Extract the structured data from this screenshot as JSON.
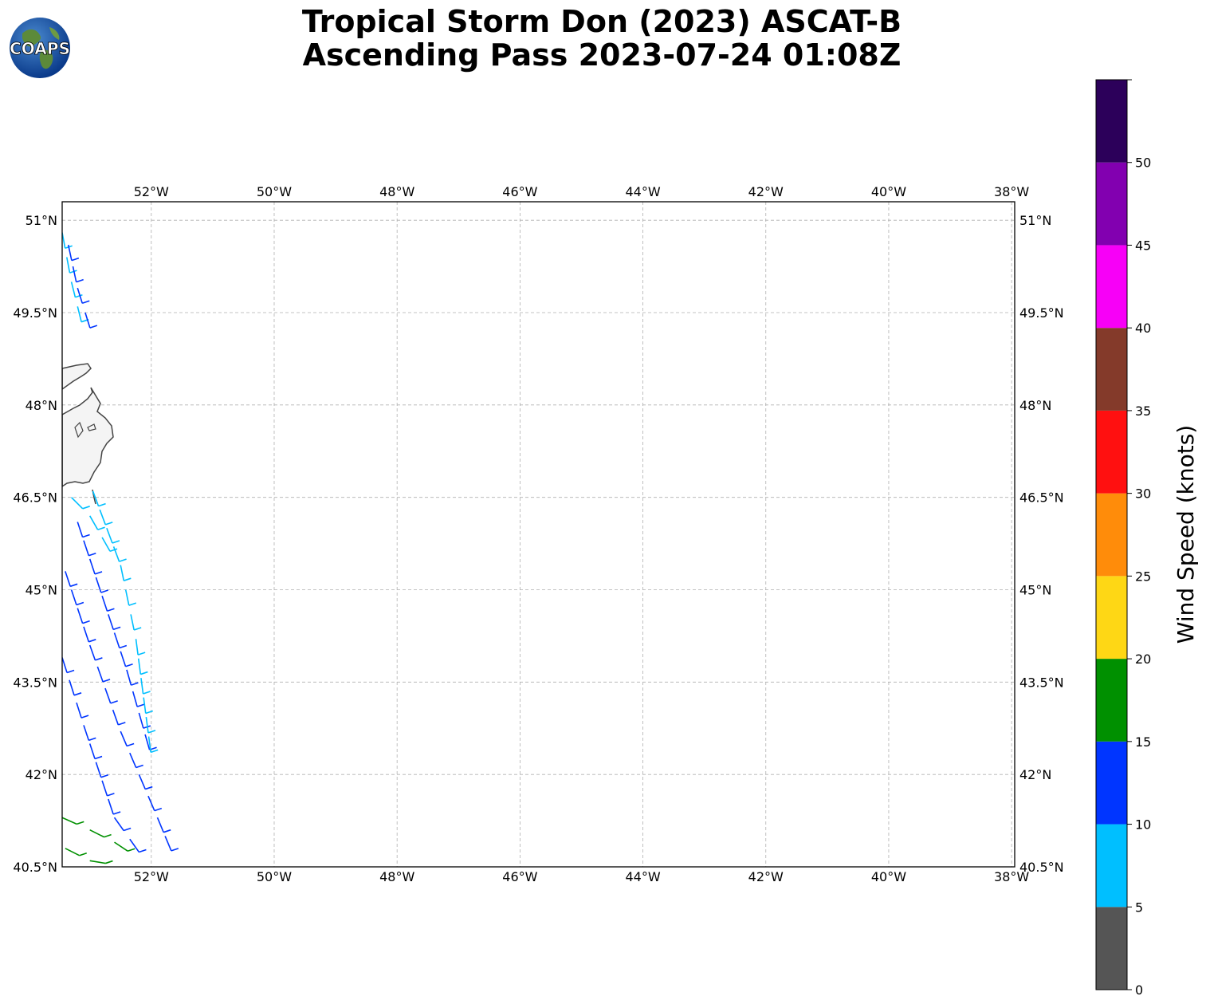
{
  "title": {
    "line1": "Tropical Storm Don (2023) ASCAT-B",
    "line2": "Ascending Pass 2023-07-24 01:08Z"
  },
  "logo": {
    "text": "COAPS",
    "icon": "earth-globe-icon"
  },
  "map": {
    "lon_range": [
      -53.45,
      -37.95
    ],
    "lat_range": [
      40.5,
      51.3
    ],
    "lon_ticks": [
      {
        "value": -52,
        "label": "52°W"
      },
      {
        "value": -50,
        "label": "50°W"
      },
      {
        "value": -48,
        "label": "48°W"
      },
      {
        "value": -46,
        "label": "46°W"
      },
      {
        "value": -44,
        "label": "44°W"
      },
      {
        "value": -42,
        "label": "42°W"
      },
      {
        "value": -40,
        "label": "40°W"
      },
      {
        "value": -38,
        "label": "38°W"
      }
    ],
    "lat_ticks": [
      {
        "value": 51,
        "label": "51°N"
      },
      {
        "value": 49.5,
        "label": "49.5°N"
      },
      {
        "value": 48,
        "label": "48°N"
      },
      {
        "value": 46.5,
        "label": "46.5°N"
      },
      {
        "value": 45,
        "label": "45°N"
      },
      {
        "value": 43.5,
        "label": "43.5°N"
      },
      {
        "value": 42,
        "label": "42°N"
      },
      {
        "value": 40.5,
        "label": "40.5°N"
      }
    ],
    "grid": true,
    "coastline_color": "#444444",
    "land_color": "#f4f4f4"
  },
  "colorbar": {
    "label": "Wind Speed (knots)",
    "ticks": [
      "0",
      "5",
      "10",
      "15",
      "20",
      "25",
      "30",
      "35",
      "40",
      "45",
      "50"
    ],
    "bins": [
      {
        "min": 0,
        "max": 5,
        "color": "#555555"
      },
      {
        "min": 5,
        "max": 10,
        "color": "#00bfff"
      },
      {
        "min": 10,
        "max": 15,
        "color": "#0035ff"
      },
      {
        "min": 15,
        "max": 20,
        "color": "#009000"
      },
      {
        "min": 20,
        "max": 25,
        "color": "#fed715"
      },
      {
        "min": 25,
        "max": 30,
        "color": "#ff8c0a"
      },
      {
        "min": 30,
        "max": 35,
        "color": "#ff1010"
      },
      {
        "min": 35,
        "max": 40,
        "color": "#843a2a"
      },
      {
        "min": 40,
        "max": 45,
        "color": "#f700f7"
      },
      {
        "min": 45,
        "max": 50,
        "color": "#8200b0"
      },
      {
        "min": 50,
        "max": 55,
        "color": "#2c005a"
      }
    ]
  },
  "wind_swaths": [
    {
      "speed": 12,
      "points": [
        [
          -53.45,
          43.9
        ],
        [
          -53.1,
          42.8
        ],
        [
          -52.6,
          41.3
        ],
        [
          -52.1,
          40.6
        ]
      ]
    },
    {
      "speed": 12,
      "points": [
        [
          -53.4,
          45.3
        ],
        [
          -53.0,
          44.1
        ],
        [
          -52.5,
          42.7
        ],
        [
          -51.9,
          41.3
        ],
        [
          -51.65,
          40.7
        ]
      ]
    },
    {
      "speed": 12,
      "points": [
        [
          -53.2,
          46.1
        ],
        [
          -52.8,
          44.9
        ],
        [
          -52.4,
          43.7
        ],
        [
          -52.0,
          42.3
        ]
      ]
    },
    {
      "speed": 7,
      "points": [
        [
          -53.3,
          46.5
        ],
        [
          -53.0,
          46.2
        ],
        [
          -52.6,
          45.5
        ]
      ]
    },
    {
      "speed": 7,
      "points": [
        [
          -52.95,
          46.6
        ],
        [
          -52.5,
          45.4
        ],
        [
          -52.25,
          44.2
        ],
        [
          -52.0,
          42.3
        ]
      ]
    },
    {
      "speed": 7,
      "points": [
        [
          -53.45,
          50.8
        ],
        [
          -53.3,
          50.0
        ],
        [
          -53.1,
          49.2
        ]
      ]
    },
    {
      "speed": 12,
      "points": [
        [
          -53.35,
          50.6
        ],
        [
          -53.2,
          49.9
        ],
        [
          -52.95,
          49.1
        ]
      ]
    },
    {
      "speed": 17,
      "points": [
        [
          -53.45,
          41.3
        ],
        [
          -53.0,
          41.1
        ],
        [
          -52.6,
          40.9
        ],
        [
          -52.3,
          40.7
        ]
      ]
    },
    {
      "speed": 17,
      "points": [
        [
          -53.4,
          40.8
        ],
        [
          -53.0,
          40.6
        ],
        [
          -52.7,
          40.55
        ]
      ]
    }
  ]
}
